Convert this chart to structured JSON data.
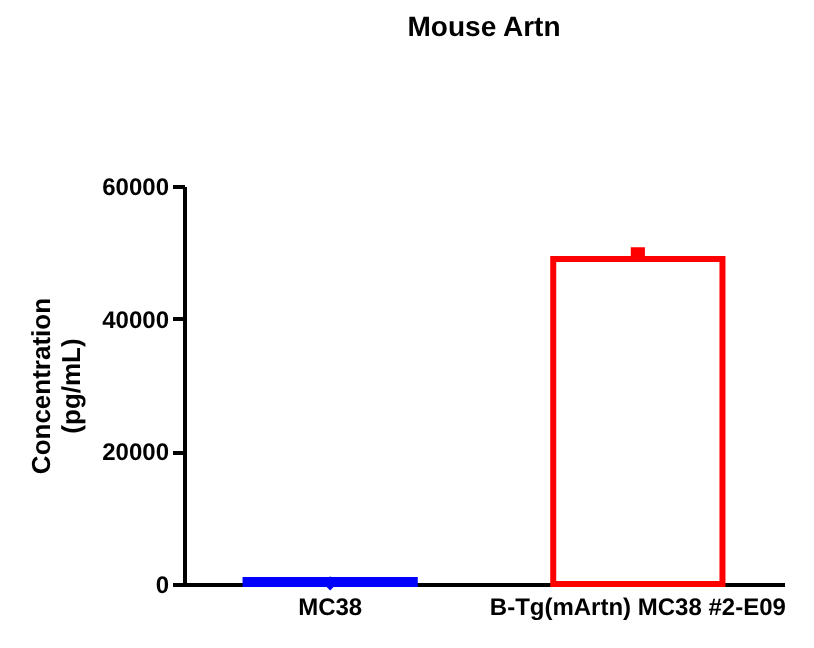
{
  "chart_data": {
    "type": "bar",
    "title": "Mouse Artn",
    "ylabel": "Concentration\n(pg/mL)",
    "categories": [
      "MC38",
      "B-Tg(mArtn) MC38 #2-E09"
    ],
    "series": [
      {
        "colors": [
          "#0000ff",
          "#ff0000"
        ],
        "values": [
          600,
          49000
        ]
      },
      {
        "type": "scatter",
        "color": "#0000ff",
        "marker": "diamond",
        "x": [
          "MC38"
        ],
        "values": [
          100
        ]
      },
      {
        "type": "scatter",
        "color": "#ff0000",
        "marker": "square",
        "x": [
          "B-Tg(mArtn) MC38 #2-E09"
        ],
        "values": [
          49700
        ]
      }
    ],
    "ylim": [
      0,
      60000
    ],
    "yticks": [
      0,
      20000,
      40000,
      60000
    ]
  }
}
